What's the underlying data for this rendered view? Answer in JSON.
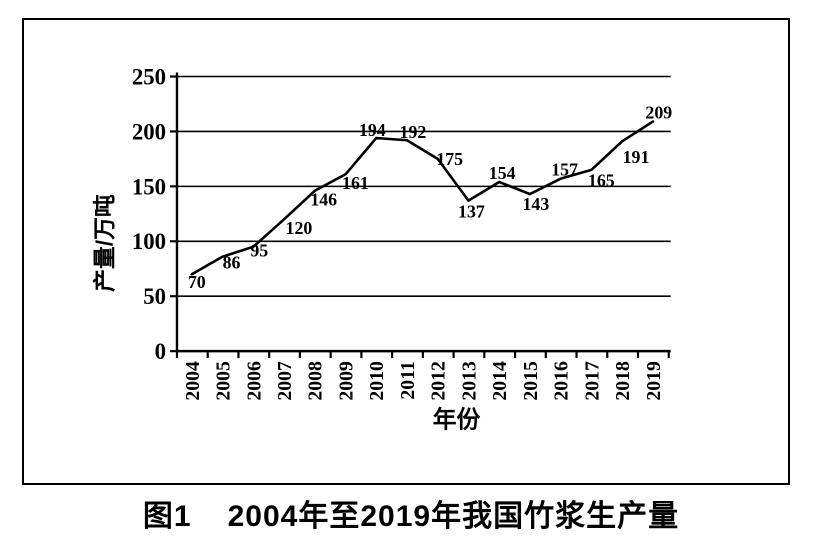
{
  "figure": {
    "caption_prefix": "图1",
    "caption_text": "2004年至2019年我国竹浆生产量"
  },
  "chart_data": {
    "type": "line",
    "title": "",
    "xlabel": "年份",
    "ylabel": "产量/万吨",
    "x": [
      "2004",
      "2005",
      "2006",
      "2007",
      "2008",
      "2009",
      "2010",
      "2011",
      "2012",
      "2013",
      "2014",
      "2015",
      "2016",
      "2017",
      "2018",
      "2019"
    ],
    "values": [
      70,
      86,
      95,
      120,
      146,
      161,
      194,
      192,
      175,
      137,
      154,
      143,
      157,
      165,
      191,
      209
    ],
    "ylim": [
      0,
      250
    ],
    "yticks": [
      0,
      50,
      100,
      150,
      200,
      250
    ],
    "grid": true,
    "legend": "none",
    "data_labels": true,
    "colors": {
      "line": "#000000",
      "axis": "#000000",
      "gridline": "#000000",
      "text": "#000000",
      "background": "#ffffff"
    }
  }
}
